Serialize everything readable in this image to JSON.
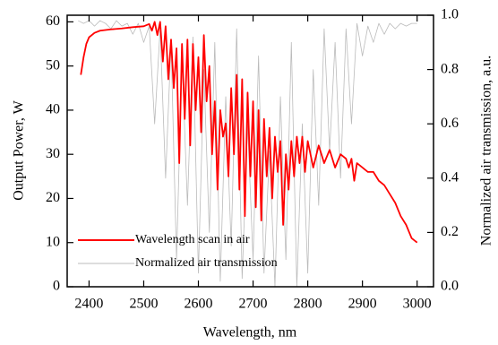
{
  "chart_data": {
    "type": "line",
    "x_label": "Wavelength, nm",
    "y_label": "Output Power, W",
    "y2_label": "Normalized air transmission, a.u.",
    "xlim": [
      2360,
      3030
    ],
    "xticks": [
      2400,
      2500,
      2600,
      2700,
      2800,
      2900,
      3000
    ],
    "ylim": [
      0,
      61.5
    ],
    "yticks": [
      0,
      10,
      20,
      30,
      40,
      50,
      60
    ],
    "y2lim": [
      0,
      1.0
    ],
    "y2ticks": [
      {
        "value": 0,
        "label": "0.0"
      },
      0.2,
      0.4,
      0.6,
      0.8,
      {
        "value": 1,
        "label": "1.0"
      }
    ],
    "legend": "lower left",
    "series": [
      {
        "name": "Wavelength scan in air",
        "color": "#ff0000",
        "axis": "y",
        "x": [
          2385,
          2390,
          2395,
          2400,
          2410,
          2420,
          2440,
          2460,
          2480,
          2500,
          2510,
          2515,
          2520,
          2525,
          2530,
          2535,
          2540,
          2545,
          2550,
          2555,
          2560,
          2565,
          2570,
          2575,
          2580,
          2585,
          2590,
          2595,
          2600,
          2605,
          2610,
          2615,
          2620,
          2625,
          2630,
          2635,
          2640,
          2645,
          2650,
          2655,
          2660,
          2665,
          2670,
          2675,
          2680,
          2685,
          2690,
          2695,
          2700,
          2705,
          2710,
          2715,
          2720,
          2725,
          2730,
          2735,
          2740,
          2745,
          2750,
          2755,
          2760,
          2765,
          2770,
          2775,
          2780,
          2785,
          2790,
          2795,
          2800,
          2810,
          2820,
          2830,
          2840,
          2850,
          2860,
          2870,
          2875,
          2880,
          2885,
          2890,
          2900,
          2910,
          2920,
          2930,
          2940,
          2950,
          2960,
          2970,
          2980,
          2990,
          3000
        ],
        "values": [
          48,
          52,
          55,
          56.5,
          57.5,
          58,
          58.3,
          58.5,
          58.8,
          59,
          59.5,
          58,
          60,
          57,
          60,
          51,
          59,
          47,
          56,
          45,
          54,
          28,
          55,
          38,
          56,
          32,
          55,
          40,
          52,
          35,
          57,
          42,
          50,
          30,
          42,
          22,
          40,
          34,
          37,
          25,
          45,
          30,
          48,
          22,
          47,
          16,
          44,
          25,
          42,
          18,
          40,
          15,
          38,
          25,
          36,
          20,
          34,
          26,
          33,
          14,
          30,
          22,
          33,
          25,
          34,
          28,
          34,
          26,
          33,
          27,
          32,
          28,
          31,
          27,
          30,
          29,
          27,
          29,
          24,
          28,
          27,
          26,
          26,
          24,
          23,
          21,
          19,
          16,
          14,
          11,
          10
        ]
      },
      {
        "name": "Normalized air transmission",
        "color": "#bbbbbb",
        "axis": "y2",
        "x": [
          2380,
          2390,
          2400,
          2410,
          2420,
          2430,
          2440,
          2450,
          2460,
          2470,
          2480,
          2490,
          2500,
          2510,
          2520,
          2530,
          2540,
          2550,
          2560,
          2570,
          2580,
          2590,
          2600,
          2610,
          2620,
          2630,
          2640,
          2650,
          2660,
          2670,
          2680,
          2690,
          2700,
          2710,
          2720,
          2730,
          2740,
          2750,
          2760,
          2770,
          2780,
          2790,
          2800,
          2810,
          2820,
          2830,
          2840,
          2850,
          2860,
          2870,
          2880,
          2890,
          2900,
          2910,
          2920,
          2930,
          2940,
          2950,
          2960,
          2970,
          2980,
          2990,
          3000
        ],
        "values": [
          0.98,
          0.97,
          0.98,
          0.96,
          0.98,
          0.97,
          0.95,
          0.98,
          0.96,
          0.97,
          0.93,
          0.97,
          0.9,
          0.96,
          0.6,
          0.95,
          0.4,
          0.9,
          0.1,
          0.85,
          0.3,
          0.92,
          0.05,
          0.8,
          0.2,
          0.9,
          0.02,
          0.7,
          0.15,
          0.95,
          0.03,
          0.6,
          0.1,
          0.85,
          0.05,
          0.5,
          0,
          0.7,
          0.1,
          0.9,
          0,
          0.6,
          0.05,
          0.8,
          0.3,
          0.95,
          0.5,
          0.9,
          0.4,
          0.95,
          0.6,
          0.97,
          0.85,
          0.96,
          0.9,
          0.97,
          0.93,
          0.97,
          0.95,
          0.97,
          0.96,
          0.97,
          0.97
        ]
      }
    ]
  }
}
